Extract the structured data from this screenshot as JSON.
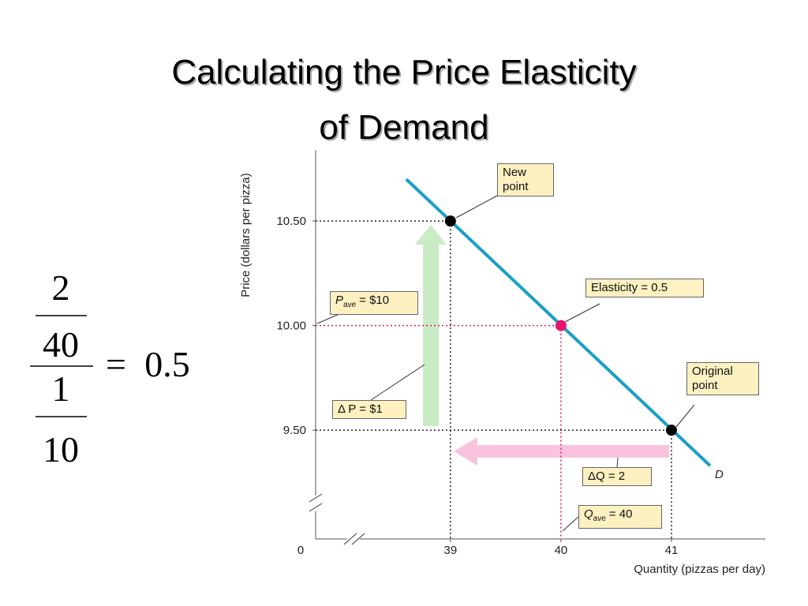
{
  "title_lines": [
    "Calculating the Price Elasticity",
    "of Demand"
  ],
  "formula": {
    "dq": 2,
    "q_ave": 40,
    "dp": 1,
    "p_ave": 10,
    "operator": "=",
    "result": 0.5
  },
  "chart_data": {
    "type": "line",
    "x_label": "Quantity (pizzas per day)",
    "y_label": "Price (dollars per pizza)",
    "origin": 0,
    "xlim": [
      37.78,
      41.85
    ],
    "ylim": [
      8.98,
      10.84
    ],
    "xticks": [
      39,
      {
        "value": 40,
        "label": "40",
        "color": "#e8136c"
      },
      41
    ],
    "yticks": [
      {
        "value": 9.5,
        "label": "9.50"
      },
      {
        "value": 10,
        "label": "10.00",
        "color": "#e8136c"
      },
      {
        "value": 10.5,
        "label": "10.50"
      }
    ],
    "series": [
      {
        "name": "D",
        "color": "#1a9fc4",
        "x": [
          38.6,
          41.35
        ],
        "values": [
          10.7,
          9.33
        ]
      }
    ],
    "points": [
      {
        "x": 39,
        "y": 10.5,
        "color": "#000000"
      },
      {
        "x": 40,
        "y": 10,
        "color": "#e8136c"
      },
      {
        "x": 41,
        "y": 9.5,
        "color": "#000000"
      }
    ],
    "annotations": [
      {
        "text": "New point"
      },
      {
        "text": "Elasticity = 0.5"
      },
      {
        "text": "Original point"
      },
      {
        "symbol": "P",
        "subscript": "ave",
        "text": "= $10"
      },
      {
        "text": "Δ P = $1"
      },
      {
        "text": "ΔQ = 2"
      },
      {
        "symbol": "Q",
        "subscript": "ave",
        "text": "= 40"
      }
    ]
  }
}
